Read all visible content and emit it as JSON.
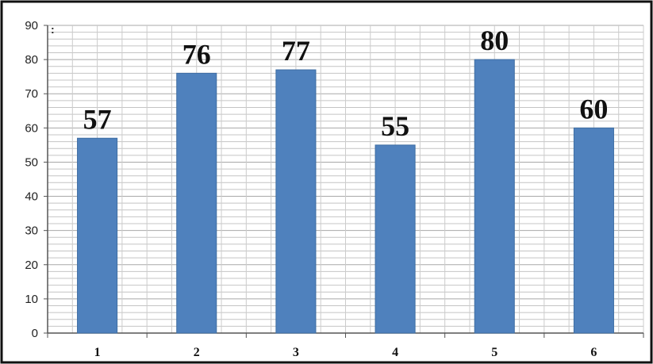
{
  "chart_data": {
    "type": "bar",
    "categories": [
      "1",
      "2",
      "3",
      "4",
      "5",
      "6"
    ],
    "values": [
      57,
      76,
      77,
      55,
      80,
      60
    ],
    "data_labels": [
      "57",
      "76",
      "77",
      "55",
      "80",
      "60"
    ],
    "title": "",
    "xlabel": "",
    "ylabel": "",
    "ylim": [
      0,
      90
    ],
    "yticks": [
      0,
      10,
      20,
      30,
      40,
      50,
      60,
      70,
      80,
      90
    ],
    "ytick_labels": [
      "0",
      "10",
      "20",
      "30",
      "40",
      "50",
      "60",
      "70",
      "80",
      "90"
    ],
    "grid": true,
    "legend": "none",
    "bar_color": "#4F81BD"
  }
}
